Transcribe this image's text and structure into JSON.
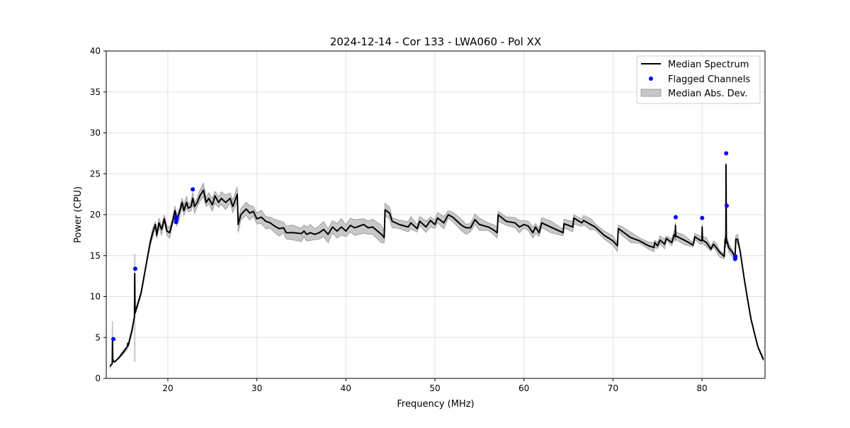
{
  "chart_data": {
    "type": "line",
    "title": "2024-12-14 - Cor 133 - LWA060 - Pol XX",
    "xlabel": "Frequency (MHz)",
    "ylabel": "Power (CPU)",
    "xlim": [
      13.08,
      87.08
    ],
    "ylim": [
      0,
      40
    ],
    "xticks": [
      20,
      30,
      40,
      50,
      60,
      70,
      80
    ],
    "yticks": [
      0,
      5,
      10,
      15,
      20,
      25,
      30,
      35,
      40
    ],
    "grid": true,
    "legend_position": "top-right",
    "legend": [
      "Median Spectrum",
      "Flagged Channels",
      "Median Abs. Dev."
    ],
    "colors": {
      "line": "#000000",
      "flag": "#0000ff",
      "band": "#c8c8c8",
      "band_edge": "#a0a0a0"
    },
    "median_spectrum": [
      [
        13.5,
        1.5
      ],
      [
        13.75,
        1.8
      ],
      [
        13.78,
        4.6
      ],
      [
        13.82,
        2.2
      ],
      [
        14,
        2.0
      ],
      [
        14.5,
        2.5
      ],
      [
        15,
        3.2
      ],
      [
        15.45,
        3.9
      ],
      [
        15.5,
        4.3
      ],
      [
        15.55,
        4.0
      ],
      [
        16,
        6.0
      ],
      [
        16.25,
        7.6
      ],
      [
        16.28,
        12.8
      ],
      [
        16.32,
        8.0
      ],
      [
        17,
        10.5
      ],
      [
        17.5,
        13.5
      ],
      [
        18,
        16.5
      ],
      [
        18.3,
        17.8
      ],
      [
        18.6,
        18.8
      ],
      [
        18.75,
        17.5
      ],
      [
        19,
        19.0
      ],
      [
        19.3,
        18.2
      ],
      [
        19.6,
        19.5
      ],
      [
        19.9,
        18.0
      ],
      [
        20.2,
        17.8
      ],
      [
        20.5,
        19.0
      ],
      [
        20.8,
        20.5
      ],
      [
        21.0,
        19.3
      ],
      [
        21.3,
        20.3
      ],
      [
        21.6,
        21.5
      ],
      [
        21.8,
        20.5
      ],
      [
        22.1,
        21.5
      ],
      [
        22.3,
        20.8
      ],
      [
        22.6,
        21.0
      ],
      [
        22.8,
        22.0
      ],
      [
        23.0,
        21.0
      ],
      [
        23.3,
        21.5
      ],
      [
        23.6,
        22.3
      ],
      [
        24.0,
        23.0
      ],
      [
        24.3,
        21.5
      ],
      [
        24.6,
        22.0
      ],
      [
        25.0,
        21.2
      ],
      [
        25.3,
        22.3
      ],
      [
        25.7,
        21.5
      ],
      [
        26.0,
        22.0
      ],
      [
        26.5,
        21.5
      ],
      [
        27.0,
        22.0
      ],
      [
        27.3,
        21.0
      ],
      [
        27.8,
        22.5
      ],
      [
        27.9,
        18.8
      ],
      [
        28.2,
        20.0
      ],
      [
        28.8,
        20.7
      ],
      [
        29.2,
        20.2
      ],
      [
        29.6,
        20.4
      ],
      [
        30,
        19.5
      ],
      [
        30.5,
        19.7
      ],
      [
        31,
        19.2
      ],
      [
        31.5,
        19.0
      ],
      [
        32,
        18.6
      ],
      [
        32.5,
        18.3
      ],
      [
        33,
        18.4
      ],
      [
        33.3,
        17.8
      ],
      [
        34,
        17.8
      ],
      [
        35,
        17.7
      ],
      [
        35.3,
        18.0
      ],
      [
        35.6,
        17.6
      ],
      [
        36,
        17.8
      ],
      [
        36.5,
        17.6
      ],
      [
        37,
        17.8
      ],
      [
        37.5,
        18.2
      ],
      [
        38,
        17.6
      ],
      [
        38.5,
        18.5
      ],
      [
        39,
        18.0
      ],
      [
        39.5,
        18.5
      ],
      [
        40,
        18.0
      ],
      [
        40.5,
        18.7
      ],
      [
        41,
        18.4
      ],
      [
        42,
        18.8
      ],
      [
        42.5,
        18.4
      ],
      [
        43,
        18.5
      ],
      [
        44,
        17.6
      ],
      [
        44.3,
        17.2
      ],
      [
        44.4,
        20.6
      ],
      [
        44.9,
        20.2
      ],
      [
        45.2,
        19.2
      ],
      [
        46,
        18.8
      ],
      [
        47,
        18.5
      ],
      [
        47.3,
        19.0
      ],
      [
        48,
        18.3
      ],
      [
        48.3,
        19.2
      ],
      [
        49,
        18.5
      ],
      [
        49.5,
        19.3
      ],
      [
        50,
        18.8
      ],
      [
        50.3,
        19.6
      ],
      [
        51,
        19.0
      ],
      [
        51.5,
        20.0
      ],
      [
        52,
        19.7
      ],
      [
        53,
        18.7
      ],
      [
        53.5,
        18.4
      ],
      [
        54,
        18.4
      ],
      [
        54.5,
        19.4
      ],
      [
        55,
        18.8
      ],
      [
        56,
        18.5
      ],
      [
        56.5,
        18.2
      ],
      [
        57,
        17.8
      ],
      [
        57.1,
        20.0
      ],
      [
        58,
        19.2
      ],
      [
        59,
        19.0
      ],
      [
        59.5,
        18.5
      ],
      [
        60,
        18.8
      ],
      [
        60.5,
        18.6
      ],
      [
        61,
        17.8
      ],
      [
        61.3,
        18.5
      ],
      [
        61.7,
        17.8
      ],
      [
        62,
        19.0
      ],
      [
        63,
        18.5
      ],
      [
        64.4,
        17.8
      ],
      [
        64.5,
        18.9
      ],
      [
        65.5,
        18.5
      ],
      [
        65.6,
        19.6
      ],
      [
        66.5,
        19.0
      ],
      [
        66.7,
        19.3
      ],
      [
        67.5,
        18.8
      ],
      [
        68,
        18.5
      ],
      [
        69,
        17.5
      ],
      [
        70,
        16.8
      ],
      [
        70.5,
        16.2
      ],
      [
        70.6,
        18.3
      ],
      [
        71,
        18.0
      ],
      [
        72,
        17.2
      ],
      [
        73,
        16.8
      ],
      [
        74,
        16.2
      ],
      [
        74.6,
        16.0
      ],
      [
        74.7,
        16.6
      ],
      [
        75,
        16.2
      ],
      [
        75.3,
        16.9
      ],
      [
        75.8,
        16.4
      ],
      [
        76,
        17.1
      ],
      [
        76.6,
        16.6
      ],
      [
        76.9,
        17.6
      ],
      [
        77.0,
        17.3
      ],
      [
        77.02,
        18.7
      ],
      [
        77.06,
        17.4
      ],
      [
        78,
        16.9
      ],
      [
        79,
        16.3
      ],
      [
        79.2,
        17.3
      ],
      [
        79.9,
        16.8
      ],
      [
        80.0,
        17.0
      ],
      [
        80.02,
        18.5
      ],
      [
        80.06,
        16.9
      ],
      [
        80.5,
        16.6
      ],
      [
        81,
        15.8
      ],
      [
        81.3,
        16.4
      ],
      [
        81.6,
        16.0
      ],
      [
        82,
        15.4
      ],
      [
        82.5,
        14.9
      ],
      [
        82.6,
        17.0
      ],
      [
        82.68,
        16.5
      ],
      [
        82.7,
        26.1
      ],
      [
        82.74,
        17.0
      ],
      [
        83,
        16.0
      ],
      [
        83.5,
        15.3
      ],
      [
        83.7,
        14.6
      ],
      [
        83.8,
        17.0
      ],
      [
        84.0,
        17.0
      ],
      [
        84.3,
        15.5
      ],
      [
        84.7,
        12.5
      ],
      [
        85.1,
        9.8
      ],
      [
        85.5,
        7.3
      ],
      [
        85.9,
        5.5
      ],
      [
        86.3,
        3.8
      ],
      [
        86.9,
        2.3
      ]
    ],
    "mad_halfwidth": [
      [
        13.5,
        0.1
      ],
      [
        17,
        0.2
      ],
      [
        19,
        0.5
      ],
      [
        27.8,
        0.8
      ],
      [
        30,
        0.7
      ],
      [
        33,
        0.8
      ],
      [
        44,
        0.9
      ],
      [
        45,
        0.6
      ],
      [
        60,
        0.6
      ],
      [
        70,
        0.5
      ],
      [
        80,
        0.4
      ],
      [
        84,
        0.4
      ],
      [
        84.5,
        0.1
      ],
      [
        87,
        0.05
      ]
    ],
    "mad_spikes": [
      [
        13.78,
        7.0
      ],
      [
        16.28,
        15.2
      ]
    ],
    "flagged_channels": [
      [
        13.88,
        4.8
      ],
      [
        16.34,
        13.4
      ],
      [
        20.92,
        19.1
      ],
      [
        20.96,
        19.4
      ],
      [
        21.0,
        19.7
      ],
      [
        20.94,
        19.6
      ],
      [
        22.8,
        23.1
      ],
      [
        77.05,
        19.7
      ],
      [
        80.02,
        19.6
      ],
      [
        82.72,
        27.5
      ],
      [
        82.78,
        21.1
      ],
      [
        83.72,
        14.6
      ],
      [
        83.76,
        14.9
      ],
      [
        83.74,
        14.7
      ]
    ]
  }
}
